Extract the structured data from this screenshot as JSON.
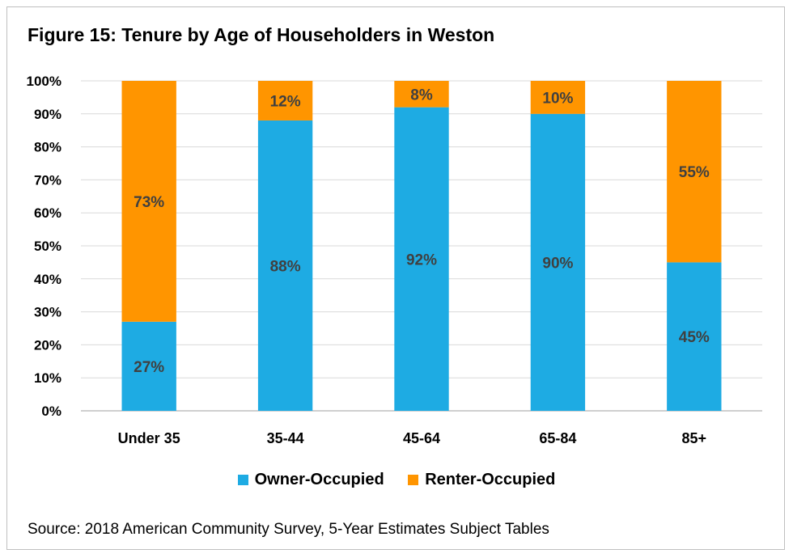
{
  "title": "Figure 15: Tenure by Age of Householders in Weston",
  "source": "Source: 2018 American Community Survey, 5-Year Estimates Subject Tables",
  "chart_data": {
    "type": "bar",
    "stacked": true,
    "categories": [
      "Under 35",
      "35-44",
      "45-64",
      "65-84",
      "85+"
    ],
    "series": [
      {
        "name": "Owner-Occupied",
        "values": [
          27,
          88,
          92,
          90,
          45
        ],
        "labels": [
          "27%",
          "88%",
          "92%",
          "90%",
          "45%"
        ],
        "color": "#1eabe3"
      },
      {
        "name": "Renter-Occupied",
        "values": [
          73,
          12,
          8,
          10,
          55
        ],
        "labels": [
          "73%",
          "12%",
          "8%",
          "10%",
          "55%"
        ],
        "color": "#ff9500"
      }
    ],
    "ylim": [
      0,
      100
    ],
    "yticks": [
      0,
      10,
      20,
      30,
      40,
      50,
      60,
      70,
      80,
      90,
      100
    ],
    "ytick_labels": [
      "0%",
      "10%",
      "20%",
      "30%",
      "40%",
      "50%",
      "60%",
      "70%",
      "80%",
      "90%",
      "100%"
    ],
    "grid": true,
    "legend_position": "bottom"
  }
}
